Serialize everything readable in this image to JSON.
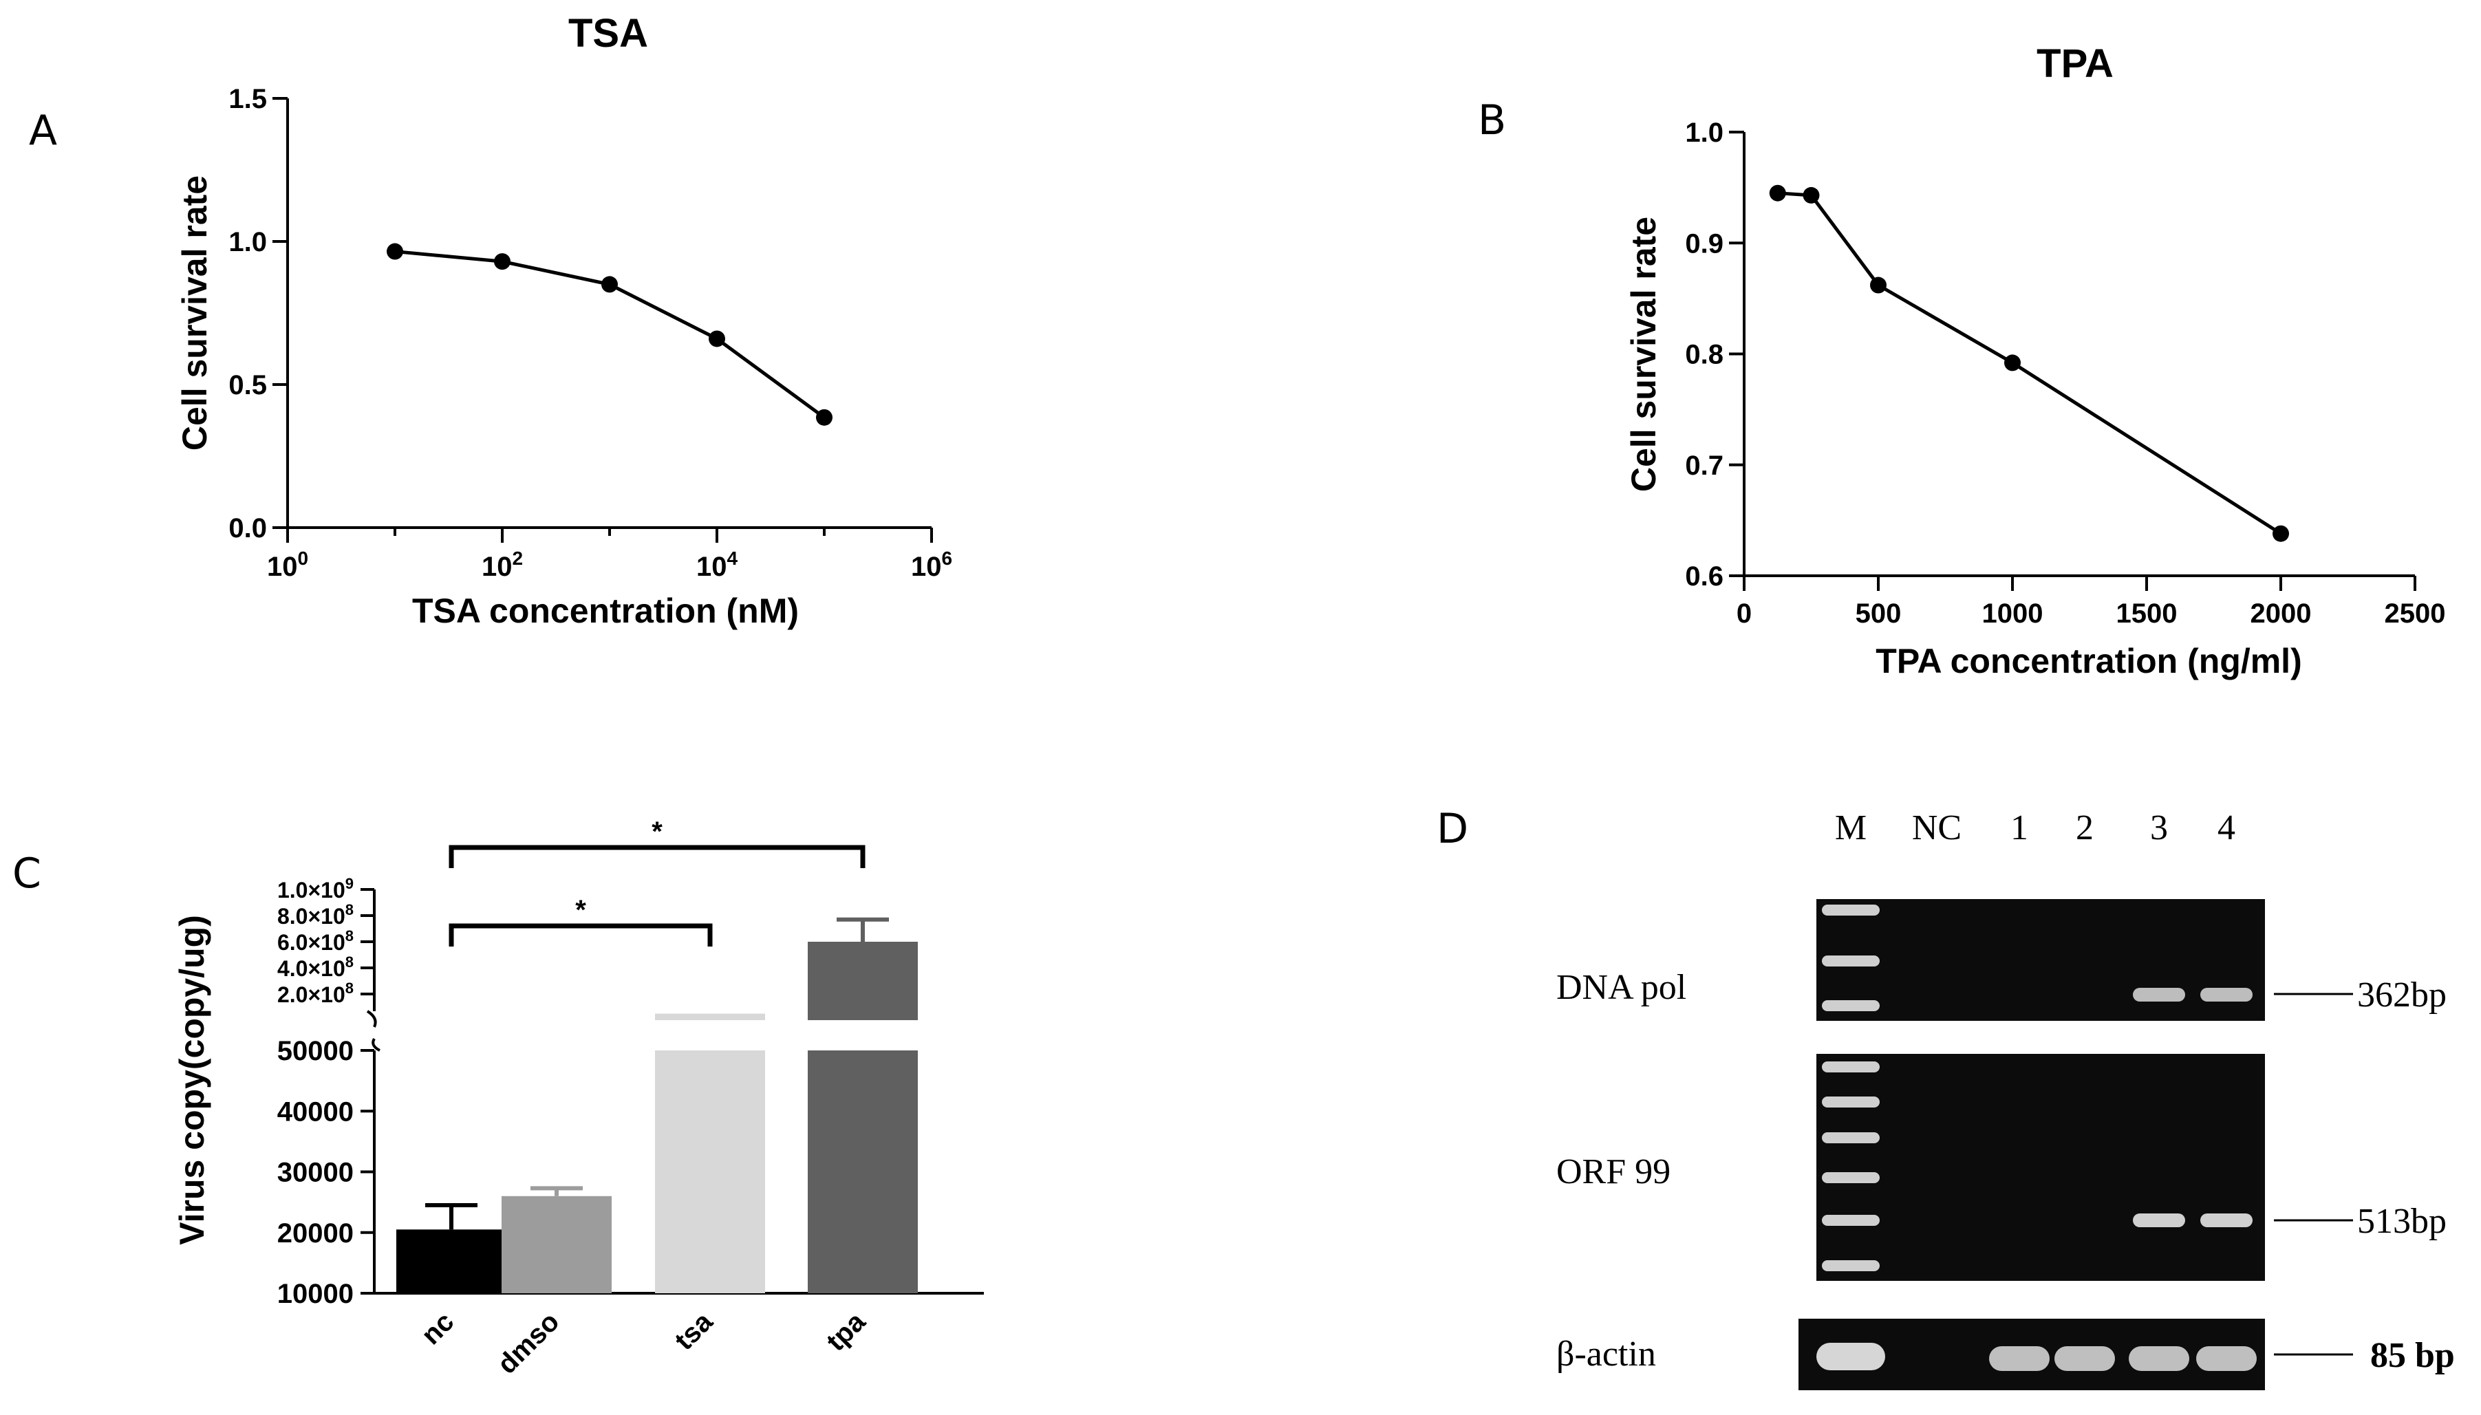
{
  "figure": {
    "panel_letters": {
      "a": "A",
      "b": "B",
      "c": "C",
      "d": "D"
    }
  },
  "chart_data": [
    {
      "id": "A",
      "type": "line",
      "title": "TSA",
      "xlabel": "TSA concentration (nM)",
      "ylabel": "Cell survival rate",
      "xscale": "log10",
      "xlim_exponent": [
        0,
        6
      ],
      "x_tick_labels": [
        {
          "exp": 0,
          "base": "10",
          "sup": "0"
        },
        {
          "exp": 2,
          "base": "10",
          "sup": "2"
        },
        {
          "exp": 4,
          "base": "10",
          "sup": "4"
        },
        {
          "exp": 6,
          "base": "10",
          "sup": "6"
        }
      ],
      "ylim": [
        0,
        1.5
      ],
      "y_ticks": [
        0,
        0.5,
        1.0,
        1.5
      ],
      "y_tick_labels": [
        "0.0",
        "0.5",
        "1.0",
        "1.5"
      ],
      "x": [
        10,
        100,
        1000,
        10000,
        100000
      ],
      "y": [
        0.965,
        0.93,
        0.85,
        0.66,
        0.385
      ]
    },
    {
      "id": "B",
      "type": "line",
      "title": "TPA",
      "xlabel": "TPA concentration (ng/ml)",
      "ylabel": "Cell survival rate",
      "xlim": [
        0,
        2500
      ],
      "x_ticks": [
        0,
        500,
        1000,
        1500,
        2000,
        2500
      ],
      "x_tick_labels": [
        "0",
        "500",
        "1000",
        "1500",
        "2000",
        "2500"
      ],
      "ylim": [
        0.6,
        1.0
      ],
      "y_ticks": [
        0.6,
        0.7,
        0.8,
        0.9,
        1.0
      ],
      "y_tick_labels": [
        "0.6",
        "0.7",
        "0.8",
        "0.9",
        "1.0"
      ],
      "x": [
        125,
        250,
        500,
        1000,
        2000
      ],
      "y": [
        0.945,
        0.943,
        0.862,
        0.792,
        0.638
      ]
    },
    {
      "id": "C",
      "type": "bar",
      "ylabel": "Virus copy(copy/ug)",
      "axis_break": true,
      "categories": [
        "nc",
        "dmso",
        "tsa",
        "tpa"
      ],
      "values": [
        20500,
        26000,
        50000000,
        600000000
      ],
      "errors": [
        4000,
        1300,
        null,
        170000000
      ],
      "colors": [
        "#000000",
        "#9c9c9c",
        "#d8d8d8",
        "#606060"
      ],
      "lower_ylim": [
        10000,
        50000
      ],
      "lower_ticks": [
        10000,
        20000,
        30000,
        40000,
        50000
      ],
      "lower_tick_labels": [
        "10000",
        "20000",
        "30000",
        "40000",
        "50000"
      ],
      "upper_ylim": [
        0,
        1000000000
      ],
      "upper_ticks": [
        200000000,
        400000000,
        600000000,
        800000000,
        1000000000
      ],
      "upper_tick_labels": [
        {
          "mant": "2.0×10",
          "exp": "8"
        },
        {
          "mant": "4.0×10",
          "exp": "8"
        },
        {
          "mant": "6.0×10",
          "exp": "8"
        },
        {
          "mant": "8.0×10",
          "exp": "8"
        },
        {
          "mant": "1.0×10",
          "exp": "9"
        }
      ],
      "significance": [
        {
          "from": "nc",
          "to": "tpa",
          "label": "*"
        },
        {
          "from": "nc",
          "to": "tsa",
          "label": "*"
        }
      ]
    },
    {
      "id": "D",
      "type": "gel",
      "lanes": [
        "M",
        "NC",
        "1",
        "2",
        "3",
        "4"
      ],
      "blots": [
        {
          "gene": "DNA pol",
          "size": "362bp",
          "bands_in_lanes": [
            "3",
            "4"
          ]
        },
        {
          "gene": "ORF 99",
          "size": "513bp",
          "bands_in_lanes": [
            "3",
            "4"
          ]
        },
        {
          "gene": "β-actin",
          "size": "85 bp",
          "bands_in_lanes": [
            "M",
            "1",
            "2",
            "3",
            "4"
          ]
        }
      ]
    }
  ]
}
